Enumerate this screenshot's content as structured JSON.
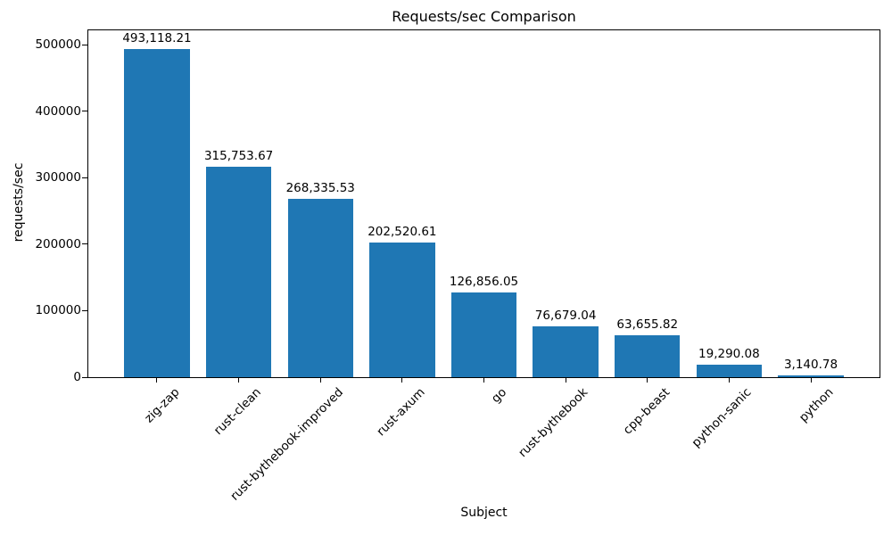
{
  "chart_data": {
    "type": "bar",
    "title": "Requests/sec Comparison",
    "xlabel": "Subject",
    "ylabel": "requests/sec",
    "categories": [
      "zig-zap",
      "rust-clean",
      "rust-bythebook-improved",
      "rust-axum",
      "go",
      "rust-bythebook",
      "cpp-beast",
      "python-sanic",
      "python"
    ],
    "values": [
      493118.21,
      315753.67,
      268335.53,
      202520.61,
      126856.05,
      76679.04,
      63655.82,
      19290.08,
      3140.78
    ],
    "bar_labels": [
      "493,118.21",
      "315,753.67",
      "268,335.53",
      "202,520.61",
      "126,856.05",
      "76,679.04",
      "63,655.82",
      "19,290.08",
      "3,140.78"
    ],
    "yticks": [
      0,
      100000,
      200000,
      300000,
      400000,
      500000
    ],
    "ytick_labels": [
      "0",
      "100000",
      "200000",
      "300000",
      "400000",
      "500000"
    ],
    "ylim": [
      0,
      521500
    ],
    "bar_color": "#1f77b4",
    "grid": false,
    "xtick_rotation_deg": 45
  }
}
